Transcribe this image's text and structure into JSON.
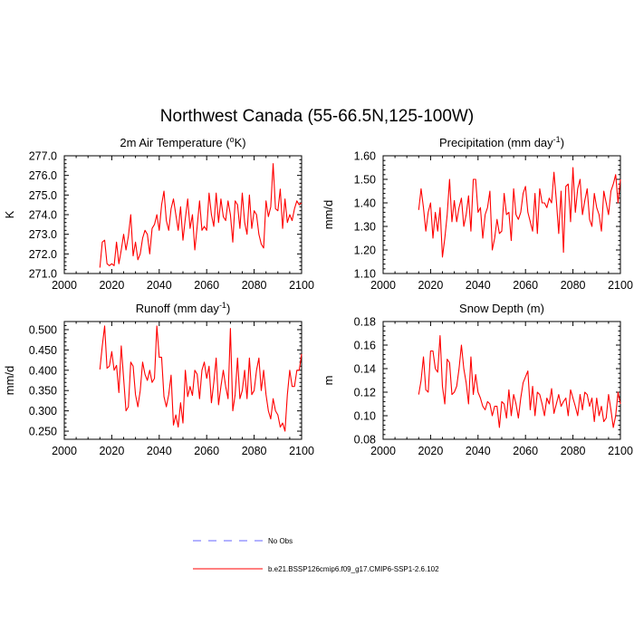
{
  "title": "Northwest Canada (55-66.5N,125-100W)",
  "legend": {
    "obs_label": "No Obs",
    "obs_color": "#6666ff",
    "model_label": "b.e21.BSSP126cmip6.f09_g17.CMIP6-SSP1-2.6.102",
    "model_color": "#ff0000"
  },
  "chart_data": [
    {
      "type": "line",
      "title": "2m Air Temperature (°K)",
      "xlabel": "",
      "ylabel": "K",
      "xlim": [
        2000,
        2100
      ],
      "ylim": [
        271.0,
        277.0
      ],
      "xticks": [
        2000,
        2020,
        2040,
        2060,
        2080,
        2100
      ],
      "yticks": [
        271.0,
        272.0,
        273.0,
        274.0,
        275.0,
        276.0,
        277.0
      ],
      "x": [
        2015,
        2016,
        2017,
        2018,
        2019,
        2020,
        2021,
        2022,
        2023,
        2024,
        2025,
        2026,
        2027,
        2028,
        2029,
        2030,
        2031,
        2032,
        2033,
        2034,
        2035,
        2036,
        2037,
        2038,
        2039,
        2040,
        2041,
        2042,
        2043,
        2044,
        2045,
        2046,
        2047,
        2048,
        2049,
        2050,
        2051,
        2052,
        2053,
        2054,
        2055,
        2056,
        2057,
        2058,
        2059,
        2060,
        2061,
        2062,
        2063,
        2064,
        2065,
        2066,
        2067,
        2068,
        2069,
        2070,
        2071,
        2072,
        2073,
        2074,
        2075,
        2076,
        2077,
        2078,
        2079,
        2080,
        2081,
        2082,
        2083,
        2084,
        2085,
        2086,
        2087,
        2088,
        2089,
        2090,
        2091,
        2092,
        2093,
        2094,
        2095,
        2096,
        2097,
        2098,
        2099,
        2100
      ],
      "series": [
        {
          "color": "#ff0000",
          "values": [
            271.3,
            272.6,
            272.7,
            271.5,
            271.4,
            271.5,
            271.4,
            272.6,
            271.5,
            272.2,
            273.0,
            272.2,
            272.9,
            274.0,
            271.9,
            272.6,
            271.7,
            272.0,
            272.8,
            273.2,
            273.0,
            272.0,
            273.3,
            273.5,
            274.0,
            273.2,
            274.5,
            275.2,
            273.7,
            273.2,
            274.3,
            274.8,
            274.0,
            273.2,
            274.4,
            272.7,
            273.8,
            274.8,
            273.3,
            274.0,
            272.2,
            273.4,
            274.7,
            273.2,
            273.4,
            273.2,
            275.1,
            274.0,
            273.4,
            275.1,
            273.6,
            274.8,
            273.9,
            273.7,
            274.7,
            274.0,
            272.6,
            274.7,
            274.5,
            273.3,
            275.1,
            273.6,
            273.0,
            275.0,
            273.3,
            274.2,
            274.0,
            273.0,
            272.5,
            272.3,
            274.7,
            273.9,
            274.4,
            276.6,
            274.3,
            274.2,
            275.3,
            273.3,
            274.8,
            273.6,
            274.0,
            273.7,
            274.3,
            274.7,
            274.5,
            274.6
          ]
        }
      ]
    },
    {
      "type": "line",
      "title": "Precipitation (mm day-1)",
      "xlabel": "",
      "ylabel": "mm/d",
      "xlim": [
        2000,
        2100
      ],
      "ylim": [
        1.1,
        1.6
      ],
      "xticks": [
        2000,
        2020,
        2040,
        2060,
        2080,
        2100
      ],
      "yticks": [
        1.1,
        1.2,
        1.3,
        1.4,
        1.5,
        1.6
      ],
      "x": [
        2015,
        2016,
        2017,
        2018,
        2019,
        2020,
        2021,
        2022,
        2023,
        2024,
        2025,
        2026,
        2027,
        2028,
        2029,
        2030,
        2031,
        2032,
        2033,
        2034,
        2035,
        2036,
        2037,
        2038,
        2039,
        2040,
        2041,
        2042,
        2043,
        2044,
        2045,
        2046,
        2047,
        2048,
        2049,
        2050,
        2051,
        2052,
        2053,
        2054,
        2055,
        2056,
        2057,
        2058,
        2059,
        2060,
        2061,
        2062,
        2063,
        2064,
        2065,
        2066,
        2067,
        2068,
        2069,
        2070,
        2071,
        2072,
        2073,
        2074,
        2075,
        2076,
        2077,
        2078,
        2079,
        2080,
        2081,
        2082,
        2083,
        2084,
        2085,
        2086,
        2087,
        2088,
        2089,
        2090,
        2091,
        2092,
        2093,
        2094,
        2095,
        2096,
        2097,
        2098,
        2099,
        2100
      ],
      "series": [
        {
          "color": "#ff0000",
          "values": [
            1.37,
            1.46,
            1.38,
            1.28,
            1.36,
            1.4,
            1.25,
            1.36,
            1.28,
            1.38,
            1.17,
            1.25,
            1.35,
            1.5,
            1.32,
            1.41,
            1.32,
            1.38,
            1.42,
            1.3,
            1.35,
            1.43,
            1.28,
            1.5,
            1.5,
            1.36,
            1.38,
            1.25,
            1.35,
            1.38,
            1.45,
            1.2,
            1.25,
            1.33,
            1.27,
            1.28,
            1.44,
            1.35,
            1.36,
            1.24,
            1.46,
            1.35,
            1.33,
            1.36,
            1.44,
            1.47,
            1.36,
            1.32,
            1.28,
            1.44,
            1.27,
            1.46,
            1.4,
            1.4,
            1.38,
            1.42,
            1.4,
            1.53,
            1.41,
            1.27,
            1.45,
            1.19,
            1.47,
            1.48,
            1.32,
            1.55,
            1.36,
            1.46,
            1.5,
            1.35,
            1.41,
            1.46,
            1.33,
            1.3,
            1.44,
            1.38,
            1.35,
            1.28,
            1.45,
            1.4,
            1.35,
            1.45,
            1.48,
            1.52,
            1.4,
            1.5
          ]
        }
      ]
    },
    {
      "type": "line",
      "title": "Runoff (mm day-1)",
      "xlabel": "",
      "ylabel": "mm/d",
      "xlim": [
        2000,
        2100
      ],
      "ylim": [
        0.23,
        0.52
      ],
      "xticks": [
        2000,
        2020,
        2040,
        2060,
        2080,
        2100
      ],
      "yticks": [
        0.25,
        0.3,
        0.35,
        0.4,
        0.45,
        0.5
      ],
      "x": [
        2015,
        2016,
        2017,
        2018,
        2019,
        2020,
        2021,
        2022,
        2023,
        2024,
        2025,
        2026,
        2027,
        2028,
        2029,
        2030,
        2031,
        2032,
        2033,
        2034,
        2035,
        2036,
        2037,
        2038,
        2039,
        2040,
        2041,
        2042,
        2043,
        2044,
        2045,
        2046,
        2047,
        2048,
        2049,
        2050,
        2051,
        2052,
        2053,
        2054,
        2055,
        2056,
        2057,
        2058,
        2059,
        2060,
        2061,
        2062,
        2063,
        2064,
        2065,
        2066,
        2067,
        2068,
        2069,
        2070,
        2071,
        2072,
        2073,
        2074,
        2075,
        2076,
        2077,
        2078,
        2079,
        2080,
        2081,
        2082,
        2083,
        2084,
        2085,
        2086,
        2087,
        2088,
        2089,
        2090,
        2091,
        2092,
        2093,
        2094,
        2095,
        2096,
        2097,
        2098,
        2099,
        2100
      ],
      "series": [
        {
          "color": "#ff0000",
          "values": [
            0.402,
            0.46,
            0.509,
            0.405,
            0.41,
            0.446,
            0.4,
            0.412,
            0.345,
            0.46,
            0.38,
            0.3,
            0.31,
            0.42,
            0.41,
            0.34,
            0.31,
            0.35,
            0.42,
            0.39,
            0.375,
            0.4,
            0.37,
            0.38,
            0.509,
            0.432,
            0.432,
            0.335,
            0.31,
            0.34,
            0.388,
            0.265,
            0.29,
            0.26,
            0.32,
            0.27,
            0.4,
            0.335,
            0.36,
            0.338,
            0.4,
            0.39,
            0.33,
            0.4,
            0.42,
            0.38,
            0.41,
            0.32,
            0.37,
            0.43,
            0.315,
            0.36,
            0.4,
            0.36,
            0.33,
            0.503,
            0.3,
            0.34,
            0.43,
            0.33,
            0.35,
            0.4,
            0.33,
            0.43,
            0.34,
            0.35,
            0.4,
            0.43,
            0.35,
            0.4,
            0.34,
            0.3,
            0.28,
            0.33,
            0.3,
            0.29,
            0.26,
            0.27,
            0.25,
            0.34,
            0.4,
            0.36,
            0.36,
            0.4,
            0.4,
            0.44
          ]
        }
      ]
    },
    {
      "type": "line",
      "title": "Snow Depth (m)",
      "xlabel": "",
      "ylabel": "m",
      "xlim": [
        2000,
        2100
      ],
      "ylim": [
        0.08,
        0.18
      ],
      "xticks": [
        2000,
        2020,
        2040,
        2060,
        2080,
        2100
      ],
      "yticks": [
        0.08,
        0.1,
        0.12,
        0.14,
        0.16,
        0.18
      ],
      "x": [
        2015,
        2016,
        2017,
        2018,
        2019,
        2020,
        2021,
        2022,
        2023,
        2024,
        2025,
        2026,
        2027,
        2028,
        2029,
        2030,
        2031,
        2032,
        2033,
        2034,
        2035,
        2036,
        2037,
        2038,
        2039,
        2040,
        2041,
        2042,
        2043,
        2044,
        2045,
        2046,
        2047,
        2048,
        2049,
        2050,
        2051,
        2052,
        2053,
        2054,
        2055,
        2056,
        2057,
        2058,
        2059,
        2060,
        2061,
        2062,
        2063,
        2064,
        2065,
        2066,
        2067,
        2068,
        2069,
        2070,
        2071,
        2072,
        2073,
        2074,
        2075,
        2076,
        2077,
        2078,
        2079,
        2080,
        2081,
        2082,
        2083,
        2084,
        2085,
        2086,
        2087,
        2088,
        2089,
        2090,
        2091,
        2092,
        2093,
        2094,
        2095,
        2096,
        2097,
        2098,
        2099,
        2100
      ],
      "series": [
        {
          "color": "#ff0000",
          "values": [
            0.118,
            0.13,
            0.15,
            0.122,
            0.12,
            0.155,
            0.155,
            0.14,
            0.137,
            0.168,
            0.125,
            0.11,
            0.148,
            0.145,
            0.118,
            0.12,
            0.125,
            0.14,
            0.16,
            0.14,
            0.128,
            0.11,
            0.15,
            0.118,
            0.135,
            0.12,
            0.115,
            0.108,
            0.105,
            0.112,
            0.11,
            0.1,
            0.108,
            0.108,
            0.09,
            0.112,
            0.11,
            0.098,
            0.122,
            0.1,
            0.118,
            0.11,
            0.098,
            0.115,
            0.128,
            0.133,
            0.138,
            0.105,
            0.125,
            0.1,
            0.12,
            0.118,
            0.11,
            0.1,
            0.115,
            0.11,
            0.123,
            0.102,
            0.11,
            0.118,
            0.108,
            0.112,
            0.115,
            0.1,
            0.122,
            0.115,
            0.108,
            0.1,
            0.118,
            0.105,
            0.12,
            0.118,
            0.108,
            0.115,
            0.095,
            0.115,
            0.1,
            0.108,
            0.095,
            0.098,
            0.118,
            0.105,
            0.09,
            0.1,
            0.12,
            0.11
          ]
        }
      ]
    }
  ]
}
